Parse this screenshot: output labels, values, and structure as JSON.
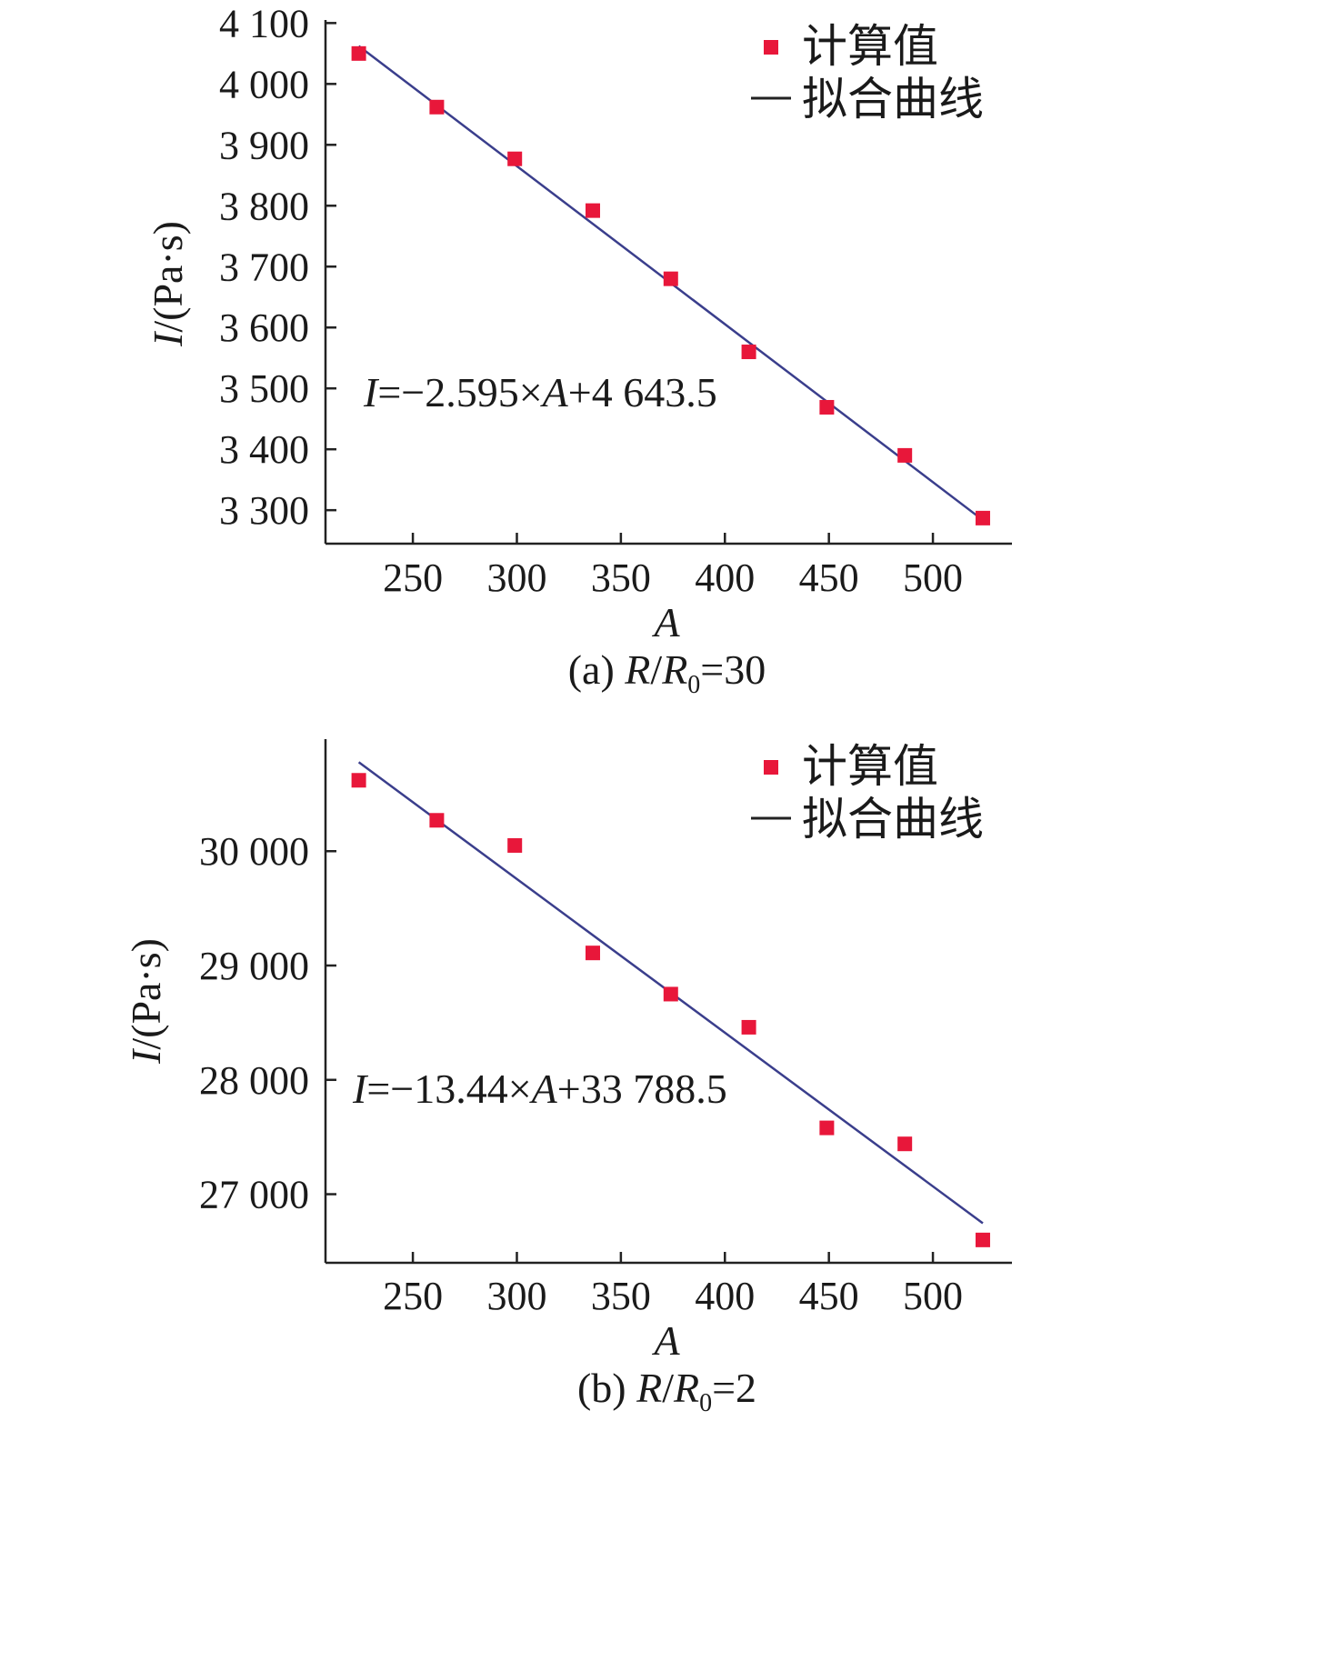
{
  "chart_data": [
    {
      "type": "scatter",
      "panel": "a",
      "caption": {
        "prefix": "(a) ",
        "ratio_num": "R",
        "ratio_den": "R",
        "ratio_den_sub": "0",
        "suffix": "=30"
      },
      "xlabel": "A",
      "ylabel": {
        "var": "I",
        "unit": "/(Pa·s)"
      },
      "equation": {
        "lhs": "I",
        "mid": "=−2.595×",
        "var": "A",
        "rhs": "+4 643.5"
      },
      "xlim": [
        208,
        538
      ],
      "ylim": [
        3245,
        4105
      ],
      "x_ticks": [
        250,
        300,
        350,
        400,
        450,
        500
      ],
      "x_tick_labels": [
        "250",
        "300",
        "350",
        "400",
        "450",
        "500"
      ],
      "y_ticks": [
        3300,
        3400,
        3500,
        3600,
        3700,
        3800,
        3900,
        4000,
        4100
      ],
      "y_tick_labels": [
        "3 300",
        "3 400",
        "3 500",
        "3 600",
        "3 700",
        "3 800",
        "3 900",
        "4 000",
        "4 100"
      ],
      "series": [
        {
          "name": "计算值",
          "kind": "scatter",
          "color": "#e8173a",
          "x": [
            224,
            261.5,
            299,
            336.5,
            374,
            411.5,
            449,
            486.5,
            524
          ],
          "y": [
            4050,
            3962,
            3877,
            3792,
            3680,
            3560,
            3469,
            3390,
            3287
          ]
        },
        {
          "name": "拟合曲线",
          "kind": "line",
          "color": "#3a3e8c",
          "slope": -2.595,
          "intercept": 4643.5,
          "x_range": [
            224,
            524
          ]
        }
      ]
    },
    {
      "type": "scatter",
      "panel": "b",
      "caption": {
        "prefix": "(b) ",
        "ratio_num": "R",
        "ratio_den": "R",
        "ratio_den_sub": "0",
        "suffix": "=2"
      },
      "xlabel": "A",
      "ylabel": {
        "var": "I",
        "unit": "/(Pa·s)"
      },
      "equation": {
        "lhs": "I",
        "mid": "=−13.44×",
        "var": "A",
        "rhs": "+33 788.5"
      },
      "xlim": [
        208,
        538
      ],
      "ylim": [
        26400,
        30980
      ],
      "x_ticks": [
        250,
        300,
        350,
        400,
        450,
        500
      ],
      "x_tick_labels": [
        "250",
        "300",
        "350",
        "400",
        "450",
        "500"
      ],
      "y_ticks": [
        27000,
        28000,
        29000,
        30000
      ],
      "y_tick_labels": [
        "27 000",
        "28 000",
        "29 000",
        "30 000"
      ],
      "series": [
        {
          "name": "计算值",
          "kind": "scatter",
          "color": "#e8173a",
          "x": [
            224,
            261.5,
            299,
            336.5,
            374,
            411.5,
            449,
            486.5,
            524
          ],
          "y": [
            30620,
            30270,
            30050,
            29110,
            28750,
            28460,
            27580,
            27440,
            26600
          ]
        },
        {
          "name": "拟合曲线",
          "kind": "line",
          "color": "#3a3e8c",
          "slope": -13.44,
          "intercept": 33788.5,
          "x_range": [
            224,
            524
          ]
        }
      ]
    }
  ]
}
